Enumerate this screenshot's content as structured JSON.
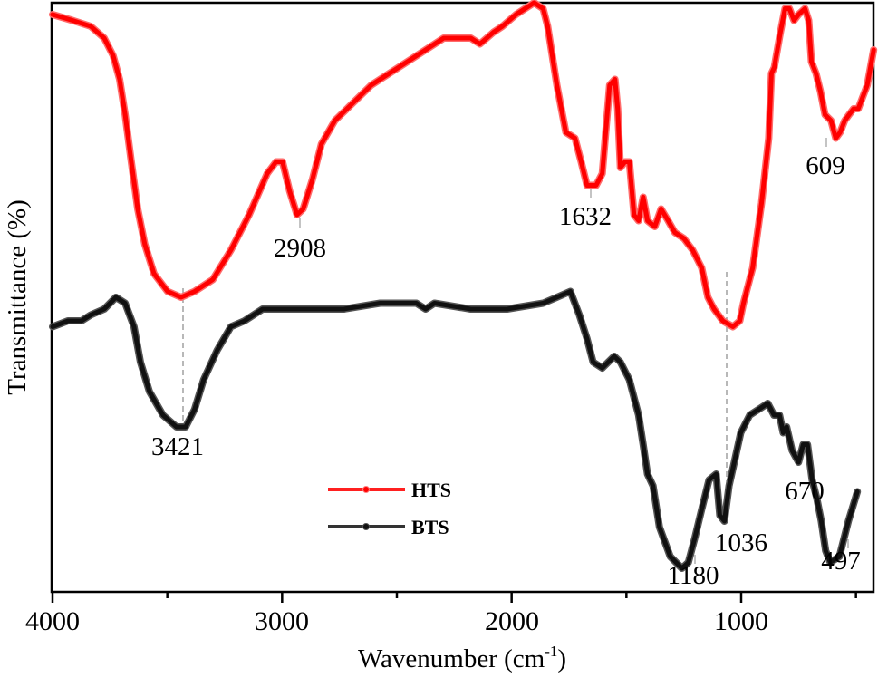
{
  "chart_data": {
    "type": "line",
    "title": "",
    "xlabel": "Wavenumber (cm-1)",
    "xlabel_main": "Wavenumber (cm",
    "xlabel_sup": "-1",
    "xlabel_close": ")",
    "ylabel": "Transmittance (%)",
    "xlim": [
      4000,
      400
    ],
    "x_reversed": true,
    "y_ticks_shown": false,
    "grid": false,
    "x_ticks": [
      4000,
      3500,
      3000,
      2500,
      2000,
      1500,
      1000,
      500
    ],
    "x_tick_labels": [
      "4000",
      "3000",
      "2000",
      "1000"
    ],
    "legend": {
      "position": "lower-center",
      "entries": [
        "HTS",
        "BTS"
      ]
    },
    "series": [
      {
        "name": "HTS",
        "color": "#ff0000",
        "note": "relative transmittance (0 = plot bottom, 100 = plot top), read from pixels",
        "x": [
          4000,
          3913,
          3834,
          3775,
          3736,
          3708,
          3684,
          3657,
          3629,
          3598,
          3558,
          3499,
          3440,
          3381,
          3302,
          3223,
          3144,
          3065,
          3026,
          2998,
          2967,
          2935,
          2908,
          2868,
          2829,
          2770,
          2691,
          2612,
          2533,
          2454,
          2375,
          2296,
          2217,
          2178,
          2138,
          2079,
          2040,
          1981,
          1902,
          1863,
          1843,
          1803,
          1764,
          1724,
          1697,
          1672,
          1632,
          1605,
          1573,
          1550,
          1538,
          1526,
          1506,
          1487,
          1467,
          1447,
          1427,
          1408,
          1376,
          1349,
          1318,
          1289,
          1250,
          1211,
          1172,
          1145,
          1118,
          1080,
          1036,
          1006,
          990,
          950,
          911,
          880,
          868,
          856,
          829,
          809,
          790,
          770,
          750,
          722,
          706,
          694,
          674,
          655,
          635,
          609,
          588,
          569,
          549,
          530,
          510,
          490,
          451,
          423
        ],
        "y": [
          98,
          97,
          96,
          94,
          91,
          87,
          81,
          73,
          65,
          59,
          54,
          51,
          50,
          51,
          53,
          58,
          64,
          71,
          73,
          73,
          68,
          64,
          65,
          70,
          76,
          80,
          83,
          86,
          88,
          90,
          92,
          94,
          94,
          94,
          93,
          95,
          96,
          98,
          100,
          99,
          96,
          86,
          78,
          77,
          73,
          69,
          69,
          71,
          86,
          87,
          82,
          72,
          73,
          73,
          64,
          63,
          67,
          63,
          62,
          65,
          63,
          61,
          60,
          58,
          55,
          50,
          48,
          46,
          45,
          46,
          49,
          55,
          66,
          77,
          88,
          89,
          95,
          99,
          99,
          97,
          98,
          99,
          97,
          90,
          88,
          85,
          81,
          80,
          77,
          78,
          80,
          81,
          82,
          82,
          86,
          92
        ]
      },
      {
        "name": "BTS",
        "color": "#1a1a1a",
        "note": "relative transmittance (0 = plot bottom, 100 = plot top), read from pixels",
        "x": [
          4000,
          3933,
          3874,
          3834,
          3775,
          3724,
          3684,
          3645,
          3617,
          3578,
          3519,
          3460,
          3420,
          3381,
          3342,
          3283,
          3223,
          3164,
          3085,
          2967,
          2849,
          2731,
          2573,
          2415,
          2375,
          2336,
          2178,
          2020,
          1863,
          1803,
          1744,
          1705,
          1672,
          1645,
          1605,
          1553,
          1526,
          1487,
          1447,
          1427,
          1408,
          1384,
          1356,
          1309,
          1258,
          1230,
          1203,
          1172,
          1140,
          1109,
          1093,
          1073,
          1053,
          1030,
          1002,
          963,
          923,
          884,
          857,
          833,
          817,
          802,
          778,
          750,
          730,
          711,
          691,
          671,
          651,
          632,
          612,
          572,
          533,
          494
        ],
        "y": [
          45,
          46,
          46,
          47,
          48,
          50,
          49,
          45,
          39,
          34,
          30,
          28,
          28,
          31,
          36,
          41,
          45,
          46,
          48,
          48,
          48,
          48,
          49,
          49,
          48,
          49,
          48,
          48,
          49,
          50,
          51,
          47,
          43,
          39,
          38,
          40,
          39,
          36,
          30,
          25,
          20,
          18,
          11,
          6,
          4,
          5,
          9,
          14,
          19,
          20,
          13,
          12,
          18,
          22,
          27,
          30,
          31,
          32,
          30,
          30,
          27,
          28,
          24,
          22,
          25,
          25,
          19,
          16,
          12,
          7,
          5,
          6,
          12,
          17
        ]
      }
    ],
    "annotations": [
      {
        "label": "3421",
        "series": "BTS",
        "x": 3421,
        "dashed_connector_to": "HTS"
      },
      {
        "label": "2908",
        "series": "HTS",
        "x": 2908
      },
      {
        "label": "1632",
        "series": "HTS",
        "x": 1632
      },
      {
        "label": "1036",
        "series": "BTS",
        "x": 1036,
        "dashed_connector_to": "HTS"
      },
      {
        "label": "609",
        "series": "HTS",
        "x": 609
      },
      {
        "label": "1180",
        "series": "BTS",
        "x": 1180
      },
      {
        "label": "670",
        "series": "BTS",
        "x": 670
      },
      {
        "label": "497",
        "series": "BTS",
        "x": 497
      }
    ]
  }
}
